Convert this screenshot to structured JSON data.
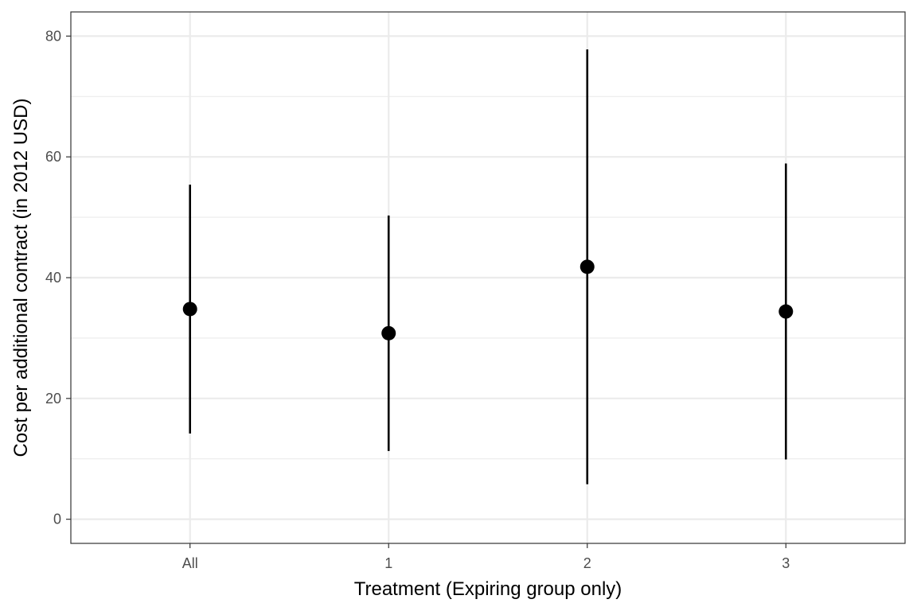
{
  "chart_data": {
    "type": "pointrange",
    "xlabel": "Treatment (Expiring group only)",
    "ylabel": "Cost per additional contract (in 2012 USD)",
    "categories": [
      "All",
      "1",
      "2",
      "3"
    ],
    "estimate": [
      34.8,
      30.8,
      41.8,
      34.4
    ],
    "ci_low": [
      14.2,
      11.3,
      5.8,
      9.9
    ],
    "ci_high": [
      55.4,
      50.3,
      77.8,
      58.9
    ],
    "ylim": [
      -4,
      84
    ],
    "yticks": [
      0,
      20,
      40,
      60,
      80
    ],
    "ytick_labels": [
      "0",
      "20",
      "40",
      "60",
      "80"
    ],
    "grid": true,
    "colors": {
      "point": "#000000",
      "grid": "#ebebeb",
      "panel_border": "#333333",
      "tick_text": "#4d4d4d"
    }
  }
}
